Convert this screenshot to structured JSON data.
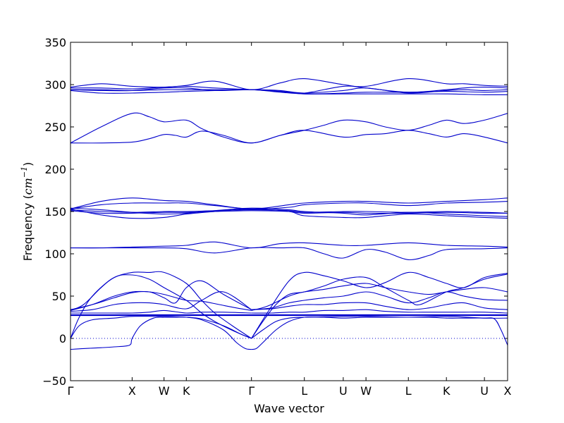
{
  "chart_data": {
    "type": "line",
    "title": "",
    "xlabel": "Wave vector",
    "ylabel": {
      "prefix": "Frequency (",
      "unit_base": "cm",
      "unit_exp": "−1",
      "suffix": ")"
    },
    "ylim": [
      -50,
      350
    ],
    "yticks": [
      -50,
      0,
      50,
      100,
      150,
      200,
      250,
      300,
      350
    ],
    "ytick_labels": [
      "−50",
      "0",
      "50",
      "100",
      "150",
      "200",
      "250",
      "300",
      "350"
    ],
    "xlim": [
      0,
      1
    ],
    "xticks": [
      {
        "label": "Γ",
        "pos": 0.0
      },
      {
        "label": "X",
        "pos": 0.141
      },
      {
        "label": "W",
        "pos": 0.214
      },
      {
        "label": "K",
        "pos": 0.265
      },
      {
        "label": "Γ",
        "pos": 0.414
      },
      {
        "label": "L",
        "pos": 0.535
      },
      {
        "label": "U",
        "pos": 0.624
      },
      {
        "label": "W",
        "pos": 0.676
      },
      {
        "label": "L",
        "pos": 0.773
      },
      {
        "label": "K",
        "pos": 0.86
      },
      {
        "label": "U",
        "pos": 0.947
      },
      {
        "label": "X",
        "pos": 1.0
      }
    ],
    "zero_line": {
      "y": 0,
      "style": "dotted"
    },
    "color": "#0000cc",
    "series": [
      {
        "x": [
          0.0,
          0.03,
          0.07,
          0.1,
          0.135,
          0.141,
          0.16,
          0.19,
          0.214,
          0.24,
          0.265,
          0.3,
          0.35,
          0.38,
          0.4,
          0.414
        ],
        "y": [
          -13,
          -12,
          -11,
          -10,
          -8,
          0,
          15,
          24,
          25,
          25,
          25,
          22,
          10,
          -5,
          -12,
          -13
        ]
      },
      {
        "x": [
          0.414,
          0.425,
          0.44,
          0.47,
          0.5,
          0.535,
          0.58,
          0.624,
          0.676,
          0.72,
          0.773,
          0.82,
          0.86,
          0.9,
          0.947,
          0.97,
          0.985,
          1.0
        ],
        "y": [
          -13,
          -12,
          -5,
          10,
          20,
          25,
          25,
          24,
          25,
          25,
          25,
          25,
          24,
          24,
          24,
          23,
          10,
          -8
        ]
      },
      {
        "x": [
          0.0,
          0.02,
          0.05,
          0.1,
          0.141,
          0.214,
          0.265,
          0.3,
          0.35,
          0.39,
          0.414
        ],
        "y": [
          0,
          15,
          22,
          24,
          26,
          26,
          25,
          23,
          15,
          5,
          0
        ]
      },
      {
        "x": [
          0.414,
          0.44,
          0.47,
          0.5,
          0.535,
          0.624,
          0.676,
          0.773,
          0.86,
          0.947,
          1.0
        ],
        "y": [
          0,
          10,
          20,
          24,
          25,
          26,
          26,
          25,
          26,
          24,
          24
        ]
      },
      {
        "x": [
          0.0,
          0.02,
          0.05,
          0.1,
          0.141,
          0.18,
          0.214,
          0.265,
          0.3,
          0.33,
          0.36,
          0.39,
          0.414
        ],
        "y": [
          0,
          25,
          50,
          72,
          75,
          70,
          60,
          45,
          30,
          20,
          12,
          5,
          0
        ]
      },
      {
        "x": [
          0.414,
          0.44,
          0.47,
          0.5,
          0.535,
          0.58,
          0.624,
          0.676,
          0.72,
          0.773,
          0.8,
          0.86,
          0.9,
          0.947,
          1.0
        ],
        "y": [
          0,
          20,
          40,
          52,
          55,
          62,
          70,
          72,
          60,
          45,
          40,
          55,
          60,
          70,
          76
        ]
      },
      {
        "x": [
          0.0,
          0.03,
          0.07,
          0.1,
          0.141,
          0.18,
          0.214,
          0.265,
          0.3,
          0.33,
          0.37,
          0.414
        ],
        "y": [
          33,
          40,
          60,
          72,
          78,
          78,
          78,
          65,
          45,
          30,
          15,
          0
        ]
      },
      {
        "x": [
          0.414,
          0.45,
          0.5,
          0.535,
          0.58,
          0.624,
          0.676,
          0.72,
          0.773,
          0.82,
          0.86,
          0.9,
          0.947,
          1.0
        ],
        "y": [
          0,
          30,
          68,
          78,
          74,
          68,
          60,
          66,
          78,
          72,
          65,
          60,
          72,
          77
        ]
      },
      {
        "x": [
          0.0,
          0.05,
          0.1,
          0.141,
          0.18,
          0.214,
          0.265,
          0.3,
          0.34,
          0.38,
          0.414
        ],
        "y": [
          33,
          40,
          50,
          55,
          55,
          52,
          45,
          44,
          40,
          36,
          33
        ]
      },
      {
        "x": [
          0.414,
          0.45,
          0.5,
          0.535,
          0.58,
          0.624,
          0.676,
          0.72,
          0.773,
          0.82,
          0.86,
          0.9,
          0.947,
          1.0
        ],
        "y": [
          33,
          38,
          50,
          55,
          58,
          62,
          65,
          60,
          55,
          52,
          55,
          58,
          60,
          55
        ]
      },
      {
        "x": [
          0.0,
          0.05,
          0.1,
          0.141,
          0.18,
          0.214,
          0.24,
          0.265,
          0.3,
          0.35,
          0.414
        ],
        "y": [
          34,
          40,
          48,
          54,
          55,
          48,
          42,
          60,
          68,
          52,
          34
        ]
      },
      {
        "x": [
          0.414,
          0.46,
          0.5,
          0.535,
          0.58,
          0.624,
          0.676,
          0.72,
          0.773,
          0.82,
          0.86,
          0.9,
          0.947,
          1.0
        ],
        "y": [
          34,
          36,
          42,
          45,
          48,
          50,
          55,
          50,
          42,
          48,
          55,
          50,
          46,
          45
        ]
      },
      {
        "x": [
          0.0,
          0.05,
          0.1,
          0.141,
          0.18,
          0.214,
          0.265,
          0.3,
          0.35,
          0.414
        ],
        "y": [
          32,
          34,
          40,
          42,
          42,
          40,
          35,
          45,
          55,
          34
        ]
      },
      {
        "x": [
          0.414,
          0.46,
          0.5,
          0.535,
          0.58,
          0.624,
          0.676,
          0.72,
          0.773,
          0.82,
          0.86,
          0.9,
          0.947,
          1.0
        ],
        "y": [
          34,
          35,
          38,
          40,
          40,
          42,
          42,
          38,
          34,
          36,
          40,
          42,
          36,
          34
        ]
      },
      {
        "x": [
          0.0,
          0.05,
          0.1,
          0.141,
          0.18,
          0.214,
          0.265,
          0.3,
          0.35,
          0.414
        ],
        "y": [
          30,
          30,
          30,
          30,
          31,
          33,
          30,
          31,
          31,
          30
        ]
      },
      {
        "x": [
          0.414,
          0.46,
          0.5,
          0.535,
          0.58,
          0.624,
          0.676,
          0.72,
          0.773,
          0.82,
          0.86,
          0.9,
          0.947,
          1.0
        ],
        "y": [
          30,
          30,
          31,
          31,
          33,
          33,
          34,
          32,
          31,
          31,
          31,
          31,
          31,
          30
        ]
      },
      {
        "x": [
          0.0,
          0.1,
          0.2,
          0.3,
          0.414,
          0.5,
          0.6,
          0.7,
          0.8,
          0.9,
          1.0
        ],
        "y": [
          28,
          28,
          28,
          28,
          28,
          28,
          28,
          28,
          28,
          28,
          28
        ]
      },
      {
        "x": [
          0.0,
          0.1,
          0.2,
          0.3,
          0.414,
          0.5,
          0.6,
          0.7,
          0.8,
          0.9,
          1.0
        ],
        "y": [
          27,
          27,
          27,
          27,
          27,
          27,
          27,
          27,
          27,
          27,
          27
        ]
      },
      {
        "x": [
          0.0,
          0.07,
          0.141,
          0.214,
          0.265,
          0.33,
          0.414,
          0.48,
          0.535,
          0.624,
          0.676,
          0.773,
          0.86,
          0.947,
          1.0
        ],
        "y": [
          107,
          107,
          108,
          109,
          110,
          114,
          107,
          112,
          113,
          110,
          110,
          113,
          110,
          109,
          108
        ]
      },
      {
        "x": [
          0.0,
          0.07,
          0.141,
          0.214,
          0.265,
          0.33,
          0.414,
          0.48,
          0.535,
          0.58,
          0.624,
          0.676,
          0.72,
          0.773,
          0.82,
          0.86,
          0.947,
          1.0
        ],
        "y": [
          107,
          107,
          107,
          107,
          106,
          101,
          107,
          107,
          107,
          100,
          95,
          105,
          102,
          93,
          98,
          105,
          106,
          107
        ]
      },
      {
        "x": [
          0.0,
          0.07,
          0.141,
          0.214,
          0.265,
          0.33,
          0.414,
          0.5,
          0.535,
          0.624,
          0.676,
          0.773,
          0.86,
          0.947,
          1.0
        ],
        "y": [
          153,
          162,
          166,
          163,
          162,
          158,
          153,
          158,
          160,
          162,
          162,
          160,
          162,
          164,
          166
        ]
      },
      {
        "x": [
          0.0,
          0.07,
          0.141,
          0.214,
          0.265,
          0.33,
          0.414,
          0.5,
          0.535,
          0.624,
          0.676,
          0.773,
          0.86,
          0.947,
          1.0
        ],
        "y": [
          153,
          158,
          160,
          160,
          160,
          157,
          153,
          155,
          158,
          160,
          160,
          157,
          160,
          161,
          162
        ]
      },
      {
        "x": [
          0.0,
          0.07,
          0.141,
          0.214,
          0.265,
          0.33,
          0.414,
          0.5,
          0.535,
          0.624,
          0.676,
          0.773,
          0.86,
          0.947,
          1.0
        ],
        "y": [
          152,
          150,
          149,
          150,
          150,
          151,
          152,
          151,
          149,
          150,
          150,
          149,
          150,
          149,
          148
        ]
      },
      {
        "x": [
          0.0,
          0.07,
          0.141,
          0.214,
          0.265,
          0.33,
          0.414,
          0.5,
          0.535,
          0.624,
          0.676,
          0.773,
          0.86,
          0.947,
          1.0
        ],
        "y": [
          151,
          148,
          148,
          149,
          149,
          150,
          151,
          150,
          148,
          149,
          148,
          148,
          149,
          148,
          148
        ]
      },
      {
        "x": [
          0.0,
          0.07,
          0.141,
          0.214,
          0.265,
          0.33,
          0.414,
          0.5,
          0.535,
          0.624,
          0.676,
          0.773,
          0.86,
          0.947,
          1.0
        ],
        "y": [
          153,
          146,
          142,
          143,
          147,
          150,
          153,
          150,
          145,
          143,
          143,
          147,
          145,
          143,
          142
        ]
      },
      {
        "x": [
          0.0,
          0.07,
          0.141,
          0.214,
          0.265,
          0.33,
          0.414,
          0.5,
          0.535,
          0.624,
          0.676,
          0.773,
          0.86,
          0.947,
          1.0
        ],
        "y": [
          154,
          152,
          149,
          147,
          148,
          151,
          154,
          152,
          150,
          148,
          146,
          149,
          147,
          145,
          144
        ]
      },
      {
        "x": [
          0.0,
          0.07,
          0.141,
          0.18,
          0.214,
          0.265,
          0.3,
          0.35,
          0.414,
          0.48,
          0.535,
          0.58,
          0.624,
          0.676,
          0.72,
          0.773,
          0.82,
          0.86,
          0.9,
          0.947,
          1.0
        ],
        "y": [
          231,
          250,
          266,
          262,
          256,
          258,
          248,
          238,
          231,
          240,
          246,
          252,
          258,
          256,
          250,
          246,
          252,
          258,
          254,
          258,
          266
        ]
      },
      {
        "x": [
          0.0,
          0.07,
          0.141,
          0.18,
          0.214,
          0.24,
          0.265,
          0.3,
          0.35,
          0.414,
          0.48,
          0.535,
          0.624,
          0.676,
          0.72,
          0.773,
          0.82,
          0.86,
          0.9,
          0.947,
          1.0
        ],
        "y": [
          231,
          231,
          232,
          236,
          241,
          240,
          238,
          245,
          240,
          231,
          240,
          246,
          238,
          241,
          242,
          246,
          242,
          238,
          242,
          238,
          231
        ]
      },
      {
        "x": [
          0.0,
          0.07,
          0.141,
          0.214,
          0.265,
          0.33,
          0.414,
          0.48,
          0.535,
          0.624,
          0.676,
          0.773,
          0.86,
          0.9,
          0.947,
          1.0
        ],
        "y": [
          297,
          301,
          298,
          297,
          299,
          304,
          294,
          302,
          307,
          300,
          298,
          307,
          301,
          301,
          299,
          298
        ]
      },
      {
        "x": [
          0.0,
          0.07,
          0.141,
          0.214,
          0.265,
          0.33,
          0.414,
          0.48,
          0.535,
          0.624,
          0.676,
          0.773,
          0.86,
          0.9,
          0.947,
          1.0
        ],
        "y": [
          296,
          296,
          295,
          297,
          298,
          296,
          294,
          292,
          290,
          298,
          296,
          291,
          294,
          296,
          297,
          296
        ]
      },
      {
        "x": [
          0.0,
          0.07,
          0.141,
          0.214,
          0.265,
          0.33,
          0.414,
          0.48,
          0.535,
          0.624,
          0.676,
          0.773,
          0.86,
          0.9,
          0.947,
          1.0
        ],
        "y": [
          294,
          293,
          293,
          296,
          296,
          293,
          294,
          293,
          290,
          293,
          296,
          290,
          293,
          294,
          293,
          294
        ]
      },
      {
        "x": [
          0.0,
          0.07,
          0.141,
          0.214,
          0.265,
          0.33,
          0.414,
          0.48,
          0.535,
          0.624,
          0.676,
          0.773,
          0.86,
          0.947,
          1.0
        ],
        "y": [
          293,
          290,
          290,
          291,
          292,
          293,
          294,
          291,
          289,
          289,
          289,
          289,
          289,
          288,
          288
        ]
      },
      {
        "x": [
          0.0,
          0.07,
          0.141,
          0.214,
          0.265,
          0.33,
          0.414,
          0.48,
          0.535,
          0.624,
          0.676,
          0.773,
          0.86,
          0.947,
          1.0
        ],
        "y": [
          294,
          294,
          293,
          294,
          294,
          294,
          294,
          292,
          289,
          290,
          291,
          291,
          292,
          291,
          292
        ]
      }
    ]
  }
}
